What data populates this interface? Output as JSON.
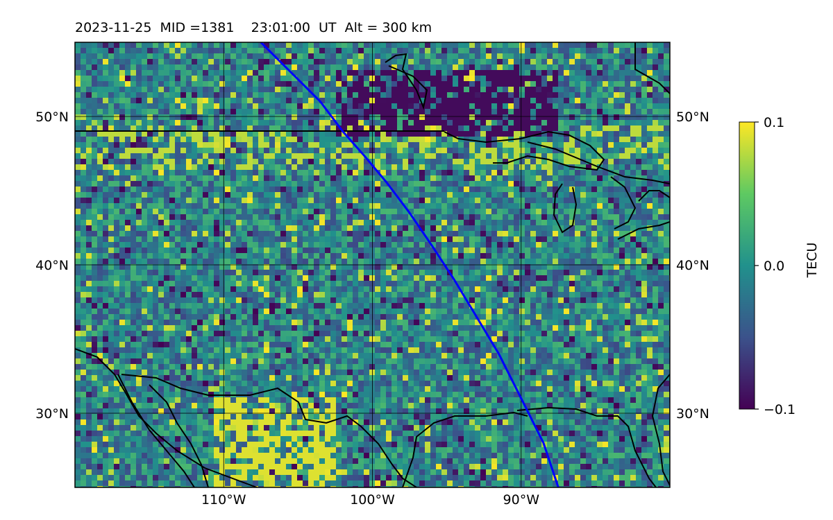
{
  "title": "2023-11-25  MID =1381    23:01:00  UT  Alt = 300 km",
  "chart_data": {
    "type": "heatmap",
    "title": "2023-11-25  MID =1381    23:01:00  UT  Alt = 300 km",
    "xlim": [
      -120,
      -80
    ],
    "ylim": [
      25,
      55
    ],
    "x_ticks": [
      {
        "value": -110,
        "label": "110°W"
      },
      {
        "value": -100,
        "label": "100°W"
      },
      {
        "value": -90,
        "label": "90°W"
      }
    ],
    "y_ticks": [
      {
        "value": 30,
        "label": "30°N"
      },
      {
        "value": 40,
        "label": "40°N"
      },
      {
        "value": 50,
        "label": "50°N"
      }
    ],
    "grid": true,
    "colorbar": {
      "label": "TECU",
      "vmin": -0.1,
      "vmax": 0.1,
      "ticks": [
        {
          "value": 0.1,
          "label": "0.1"
        },
        {
          "value": 0.0,
          "label": "0.0"
        },
        {
          "value": -0.1,
          "label": "−0.1"
        }
      ],
      "colormap": [
        "#440154",
        "#3b528b",
        "#21918c",
        "#5ec962",
        "#fde725"
      ]
    },
    "terminator_line": {
      "color": "#0000ff",
      "points": [
        [
          -107.5,
          55
        ],
        [
          -106.5,
          54.0
        ],
        [
          -105,
          52.5
        ],
        [
          -103.5,
          51.0
        ],
        [
          -102,
          49.0
        ],
        [
          -100.5,
          47.3
        ],
        [
          -99,
          45.5
        ],
        [
          -97.5,
          43.5
        ],
        [
          -96,
          41.3
        ],
        [
          -94.5,
          39.0
        ],
        [
          -93,
          36.5
        ],
        [
          -91.5,
          34.0
        ],
        [
          -90,
          31.0
        ],
        [
          -88.5,
          28.0
        ],
        [
          -87.5,
          25
        ]
      ]
    }
  }
}
